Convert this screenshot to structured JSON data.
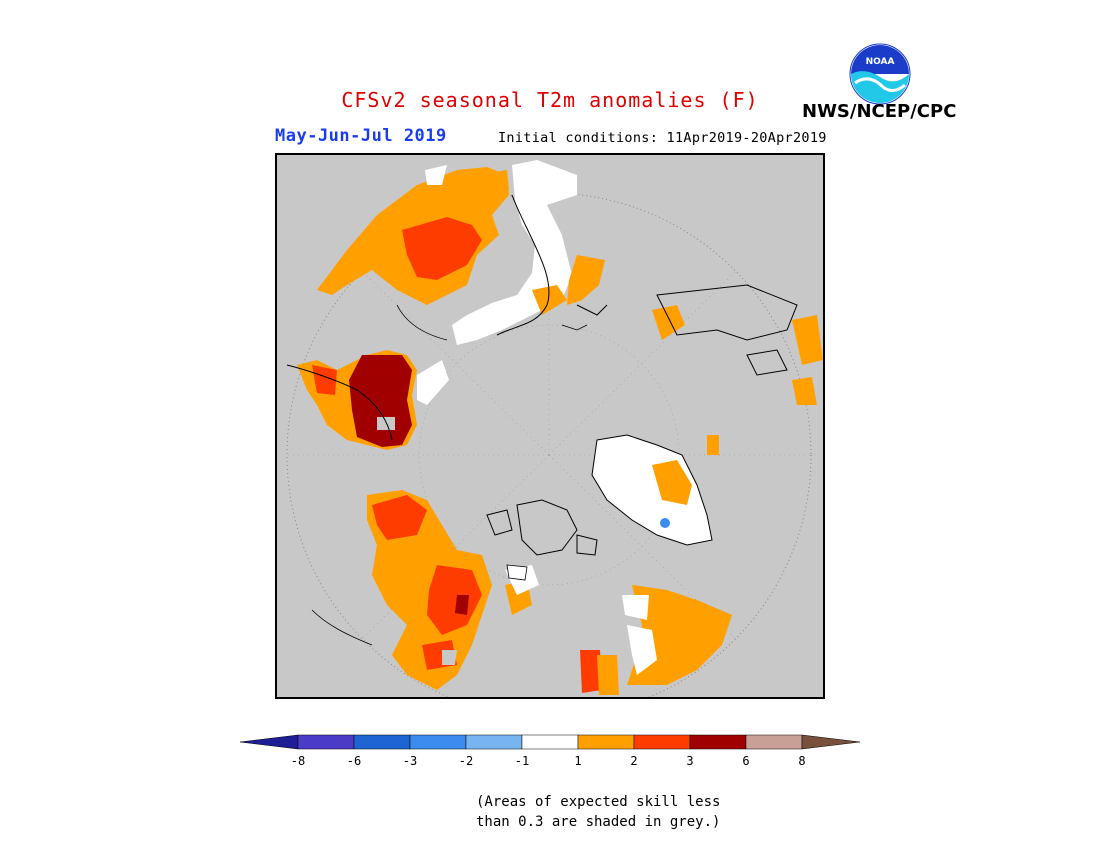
{
  "title": "CFSv2 seasonal T2m anomalies (F)",
  "period": "May-Jun-Jul 2019",
  "initial_conditions": "Initial conditions: 11Apr2019-20Apr2019",
  "agency": "NWS/NCEP/CPC",
  "logo_text": "NOAA",
  "map": {
    "projection": "north-polar-stereographic",
    "skill_mask_color": "#c8c8c8",
    "graticule": "dotted circle"
  },
  "colorbar": {
    "ticks": [
      "-8",
      "-6",
      "-3",
      "-2",
      "-1",
      "1",
      "2",
      "3",
      "6",
      "8"
    ],
    "colors": [
      "#1e1e96",
      "#4b3cc8",
      "#1e64d2",
      "#3c8cf0",
      "#78b4f0",
      "#ffffff",
      "#ffa000",
      "#ff3c00",
      "#a00000",
      "#c8a096",
      "#78503c"
    ]
  },
  "note": {
    "line1": "(Areas of expected skill less",
    "line2": "than 0.3 are shaded in grey.)"
  }
}
